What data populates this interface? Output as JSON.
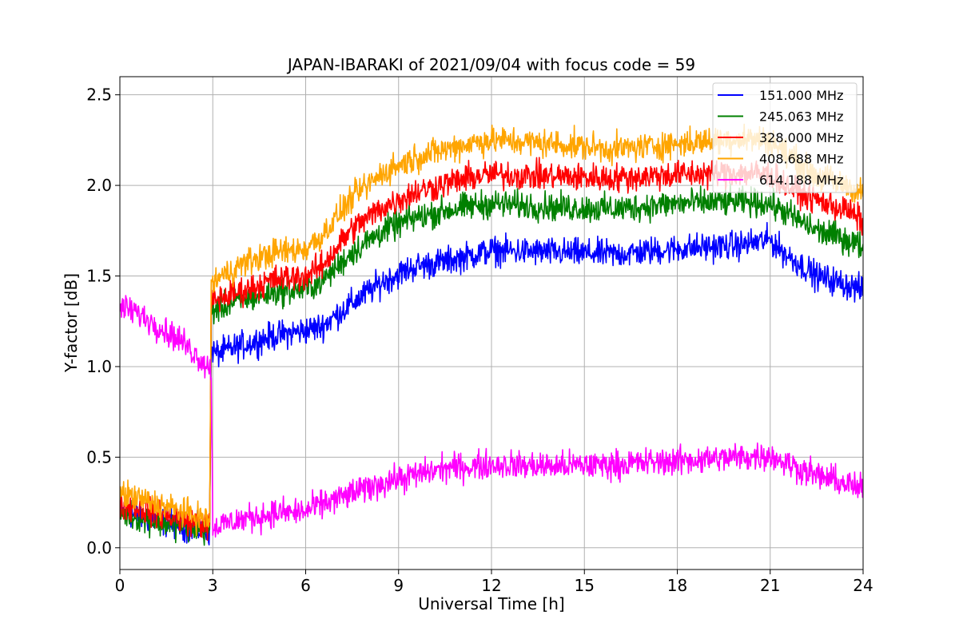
{
  "chart_data": {
    "type": "line",
    "title": "JAPAN-IBARAKI of 2021/09/04 with focus code = 59",
    "xlabel": "Universal Time [h]",
    "ylabel": "Y-factor [dB]",
    "xlim": [
      0,
      24
    ],
    "ylim": [
      -0.12,
      2.6
    ],
    "xticks": [
      0,
      3,
      6,
      9,
      12,
      15,
      18,
      21,
      24
    ],
    "xtick_labels": [
      "0",
      "3",
      "6",
      "9",
      "12",
      "15",
      "18",
      "21",
      "24"
    ],
    "yticks": [
      0.0,
      0.5,
      1.0,
      1.5,
      2.0,
      2.5
    ],
    "ytick_labels": [
      "0.0",
      "0.5",
      "1.0",
      "1.5",
      "2.0",
      "2.5"
    ],
    "grid": true,
    "legend_position": "top-right",
    "noise_amplitude": 0.055,
    "series": [
      {
        "name": "151.000 MHz",
        "color": "#0000ff",
        "x": [
          0,
          1,
          2,
          2.9,
          2.95,
          3.1,
          4,
          5,
          6,
          6.5,
          7.5,
          8.5,
          9.5,
          10.5,
          11.5,
          12,
          14,
          16,
          18,
          20,
          21,
          21.5,
          22.5,
          23.5,
          24
        ],
        "y": [
          0.2,
          0.16,
          0.12,
          0.09,
          1.1,
          1.07,
          1.12,
          1.17,
          1.2,
          1.22,
          1.35,
          1.47,
          1.55,
          1.58,
          1.62,
          1.64,
          1.63,
          1.62,
          1.65,
          1.67,
          1.7,
          1.62,
          1.5,
          1.45,
          1.42
        ]
      },
      {
        "name": "245.063 MHz",
        "color": "#008000",
        "x": [
          0,
          1,
          2,
          2.9,
          2.95,
          3.1,
          4,
          5,
          6,
          6.5,
          7.5,
          8.5,
          9.5,
          10.5,
          11.5,
          12,
          14,
          16,
          18,
          20,
          21,
          21.5,
          22.5,
          23.5,
          24
        ],
        "y": [
          0.2,
          0.15,
          0.12,
          0.09,
          1.3,
          1.32,
          1.37,
          1.41,
          1.43,
          1.47,
          1.63,
          1.75,
          1.82,
          1.86,
          1.89,
          1.9,
          1.88,
          1.87,
          1.9,
          1.91,
          1.9,
          1.85,
          1.75,
          1.7,
          1.66
        ]
      },
      {
        "name": "328.000 MHz",
        "color": "#ff0000",
        "x": [
          0,
          1,
          2,
          2.9,
          2.95,
          3.1,
          4,
          5,
          6,
          6.5,
          7.5,
          8.5,
          9.5,
          10.5,
          11.5,
          12,
          14,
          16,
          18,
          20,
          21,
          21.5,
          22.5,
          23.5,
          24
        ],
        "y": [
          0.24,
          0.2,
          0.16,
          0.12,
          1.35,
          1.37,
          1.42,
          1.48,
          1.5,
          1.55,
          1.76,
          1.88,
          1.96,
          2.01,
          2.05,
          2.06,
          2.05,
          2.04,
          2.06,
          2.07,
          2.06,
          2.0,
          1.92,
          1.86,
          1.8
        ]
      },
      {
        "name": "408.688 MHz",
        "color": "#ffa500",
        "x": [
          0,
          1,
          2,
          2.9,
          2.95,
          3.1,
          4,
          5,
          6,
          6.5,
          7.5,
          8.5,
          9.5,
          10.5,
          11.5,
          12,
          14,
          16,
          18,
          20,
          21,
          21.5,
          22.5,
          23.5,
          24
        ],
        "y": [
          0.3,
          0.25,
          0.2,
          0.15,
          1.45,
          1.48,
          1.57,
          1.63,
          1.65,
          1.72,
          1.93,
          2.07,
          2.15,
          2.2,
          2.24,
          2.25,
          2.23,
          2.2,
          2.23,
          2.26,
          2.25,
          2.18,
          2.05,
          2.0,
          1.95
        ]
      },
      {
        "name": "614.188 MHz",
        "color": "#ff00ff",
        "x": [
          0,
          0.5,
          1,
          2,
          2.8,
          2.95,
          3.0,
          3.1,
          4,
          5,
          6,
          6.5,
          7.5,
          8.5,
          9.5,
          10.5,
          11.5,
          12,
          14,
          16,
          18,
          20,
          21,
          21.5,
          22.5,
          23.5,
          24
        ],
        "y": [
          1.33,
          1.3,
          1.25,
          1.14,
          1.01,
          0.98,
          0.11,
          0.12,
          0.16,
          0.19,
          0.2,
          0.24,
          0.3,
          0.36,
          0.4,
          0.44,
          0.45,
          0.46,
          0.45,
          0.46,
          0.48,
          0.5,
          0.51,
          0.47,
          0.4,
          0.35,
          0.32
        ]
      }
    ]
  }
}
